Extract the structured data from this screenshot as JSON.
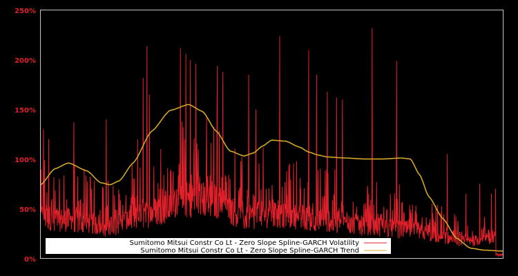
{
  "chart_data": {
    "type": "line",
    "title": "",
    "xlabel": "",
    "ylabel": "",
    "ylim": [
      0,
      250
    ],
    "y_ticks": [
      "0%",
      "50%",
      "100%",
      "150%",
      "200%",
      "250%"
    ],
    "y_tick_values": [
      0,
      50,
      100,
      150,
      200,
      250
    ],
    "grid": false,
    "background": "#000000",
    "axis_color": "#c8c8c8",
    "legend_position": "lower-center",
    "series": [
      {
        "name": "Sumitomo Mitsui Constr Co Lt - Zero Slope Spline-GARCH Volatility",
        "color": "#e0202a",
        "baseline_envelope_x_frac": [
          0.0,
          0.05,
          0.1,
          0.14,
          0.2,
          0.26,
          0.33,
          0.38,
          0.41,
          0.44,
          0.48,
          0.55,
          0.62,
          0.68,
          0.74,
          0.8,
          0.86,
          0.92,
          0.98,
          1.0
        ],
        "baseline_envelope_values": [
          38,
          35,
          33,
          28,
          35,
          45,
          55,
          52,
          45,
          36,
          40,
          38,
          35,
          30,
          28,
          26,
          20,
          15,
          18,
          3
        ],
        "spikes": [
          {
            "x": 0.006,
            "v": 130
          },
          {
            "x": 0.017,
            "v": 120
          },
          {
            "x": 0.04,
            "v": 80
          },
          {
            "x": 0.072,
            "v": 137
          },
          {
            "x": 0.094,
            "v": 90
          },
          {
            "x": 0.11,
            "v": 70
          },
          {
            "x": 0.142,
            "v": 140
          },
          {
            "x": 0.17,
            "v": 65
          },
          {
            "x": 0.21,
            "v": 120
          },
          {
            "x": 0.222,
            "v": 182
          },
          {
            "x": 0.23,
            "v": 214
          },
          {
            "x": 0.235,
            "v": 165
          },
          {
            "x": 0.26,
            "v": 110
          },
          {
            "x": 0.3,
            "v": 90
          },
          {
            "x": 0.302,
            "v": 212
          },
          {
            "x": 0.314,
            "v": 206
          },
          {
            "x": 0.324,
            "v": 200
          },
          {
            "x": 0.336,
            "v": 196
          },
          {
            "x": 0.382,
            "v": 194
          },
          {
            "x": 0.394,
            "v": 188
          },
          {
            "x": 0.45,
            "v": 185
          },
          {
            "x": 0.466,
            "v": 150
          },
          {
            "x": 0.517,
            "v": 224
          },
          {
            "x": 0.58,
            "v": 210
          },
          {
            "x": 0.597,
            "v": 185
          },
          {
            "x": 0.62,
            "v": 168
          },
          {
            "x": 0.64,
            "v": 162
          },
          {
            "x": 0.653,
            "v": 160
          },
          {
            "x": 0.717,
            "v": 232
          },
          {
            "x": 0.77,
            "v": 199
          },
          {
            "x": 0.88,
            "v": 105
          },
          {
            "x": 0.92,
            "v": 65
          },
          {
            "x": 0.95,
            "v": 75
          },
          {
            "x": 0.975,
            "v": 65
          },
          {
            "x": 0.984,
            "v": 70
          }
        ]
      },
      {
        "name": "Sumitomo Mitsui Constr Co Lt - Zero Slope Spline-GARCH Trend",
        "color": "#d4a82a",
        "x_frac": [
          0.0,
          0.03,
          0.06,
          0.1,
          0.13,
          0.15,
          0.17,
          0.2,
          0.24,
          0.28,
          0.32,
          0.35,
          0.38,
          0.41,
          0.44,
          0.46,
          0.48,
          0.5,
          0.53,
          0.56,
          0.58,
          0.6,
          0.62,
          0.66,
          0.7,
          0.74,
          0.78,
          0.8,
          0.82,
          0.84,
          0.87,
          0.9,
          0.93,
          0.96,
          1.0
        ],
        "values": [
          74,
          90,
          96,
          88,
          76,
          74,
          78,
          96,
          128,
          149,
          155,
          148,
          128,
          108,
          103,
          106,
          113,
          119,
          118,
          112,
          107,
          104,
          102,
          101,
          100,
          100,
          101,
          100,
          84,
          62,
          40,
          20,
          10,
          8,
          7
        ]
      }
    ]
  },
  "legend": {
    "items": [
      {
        "label": "Sumitomo Mitsui Constr Co Lt - Zero Slope Spline-GARCH Volatility",
        "color": "#e0202a"
      },
      {
        "label": "Sumitomo Mitsui Constr Co Lt - Zero Slope Spline-GARCH Trend",
        "color": "#d4a82a"
      }
    ]
  }
}
